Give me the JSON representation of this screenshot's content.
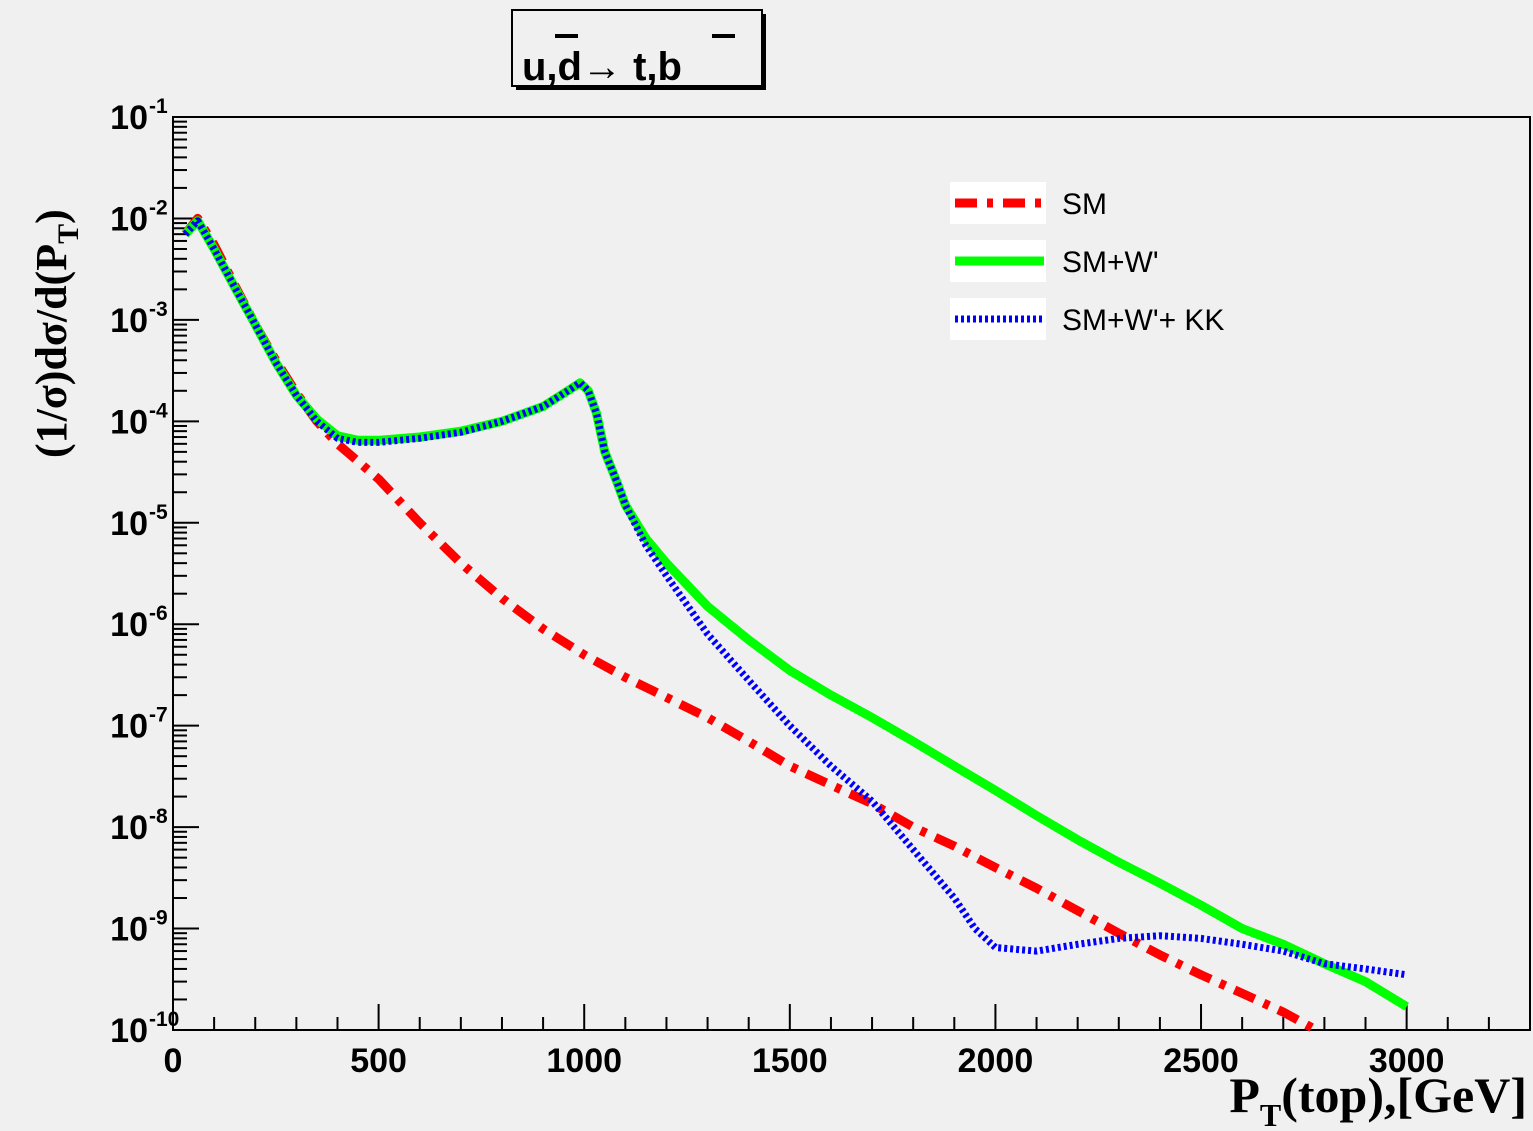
{
  "chart_data": {
    "type": "line",
    "title_parts": [
      "u,",
      "d",
      "→ t,",
      "b"
    ],
    "xlabel_parts": [
      "P",
      "T",
      "(top),[GeV]"
    ],
    "ylabel_parts": [
      "(1/σ)dσ/d(P",
      "T",
      ")"
    ],
    "x_range": [
      0,
      3300
    ],
    "y_range": [
      1e-10,
      0.1
    ],
    "y_scale": "log",
    "x_ticks": [
      0,
      500,
      1000,
      1500,
      2000,
      2500,
      3000
    ],
    "x_tick_labels": [
      "0",
      "500",
      "1000",
      "1500",
      "2000",
      "2500",
      "3000"
    ],
    "y_ticks": [
      {
        "value": 0.1,
        "base": "10",
        "exp": "-1"
      },
      {
        "value": 0.01,
        "base": "10",
        "exp": "-2"
      },
      {
        "value": 0.001,
        "base": "10",
        "exp": "-3"
      },
      {
        "value": 0.0001,
        "base": "10",
        "exp": "-4"
      },
      {
        "value": 1e-05,
        "base": "10",
        "exp": "-5"
      },
      {
        "value": 1e-06,
        "base": "10",
        "exp": "-6"
      },
      {
        "value": 1e-07,
        "base": "10",
        "exp": "-7"
      },
      {
        "value": 1e-08,
        "base": "10",
        "exp": "-8"
      },
      {
        "value": 1e-09,
        "base": "10",
        "exp": "-9"
      },
      {
        "value": 1e-10,
        "base": "10",
        "exp": "-10"
      }
    ],
    "legend_position": "top-right",
    "series": [
      {
        "name": "SM",
        "color": "#ff0000",
        "style": "dash-dot",
        "x": [
          30,
          60,
          100,
          150,
          200,
          250,
          300,
          350,
          400,
          500,
          600,
          700,
          800,
          900,
          1000,
          1100,
          1200,
          1300,
          1400,
          1500,
          1600,
          1700,
          1800,
          1900,
          2000,
          2100,
          2200,
          2300,
          2400,
          2500,
          2600,
          2700,
          2780
        ],
        "y": [
          0.007,
          0.01,
          0.0055,
          0.0022,
          0.0009,
          0.0004,
          0.00019,
          0.0001,
          6e-05,
          2.7e-05,
          1e-05,
          4e-06,
          1.8e-06,
          9e-07,
          5e-07,
          3e-07,
          1.9e-07,
          1.2e-07,
          7e-08,
          4e-08,
          2.6e-08,
          1.7e-08,
          1e-08,
          6.5e-09,
          4e-09,
          2.5e-09,
          1.5e-09,
          9e-10,
          5.5e-10,
          3.5e-10,
          2.3e-10,
          1.5e-10,
          1e-10
        ]
      },
      {
        "name": "SM+W'",
        "color": "#00ff00",
        "style": "solid",
        "x": [
          30,
          60,
          100,
          150,
          200,
          250,
          300,
          350,
          400,
          450,
          500,
          600,
          700,
          800,
          900,
          960,
          990,
          1010,
          1030,
          1050,
          1080,
          1100,
          1150,
          1200,
          1300,
          1400,
          1500,
          1600,
          1700,
          1800,
          1900,
          2000,
          2100,
          2200,
          2300,
          2400,
          2500,
          2600,
          2700,
          2800,
          2900,
          3000
        ],
        "y": [
          0.007,
          0.0095,
          0.005,
          0.0021,
          0.0009,
          0.00038,
          0.00018,
          0.000105,
          7.2e-05,
          6.5e-05,
          6.5e-05,
          7e-05,
          8e-05,
          0.0001,
          0.00014,
          0.0002,
          0.00024,
          0.0002,
          0.00012,
          5e-05,
          2.5e-05,
          1.5e-05,
          7e-06,
          4e-06,
          1.5e-06,
          7e-07,
          3.5e-07,
          2e-07,
          1.2e-07,
          7e-08,
          4e-08,
          2.3e-08,
          1.3e-08,
          7.5e-09,
          4.5e-09,
          2.8e-09,
          1.7e-09,
          1e-09,
          7e-10,
          4.5e-10,
          3e-10,
          1.7e-10
        ]
      },
      {
        "name": "SM+W'+ KK",
        "color": "#0000ff",
        "style": "dotted",
        "x": [
          30,
          60,
          100,
          150,
          200,
          250,
          300,
          350,
          400,
          450,
          500,
          600,
          700,
          800,
          900,
          960,
          990,
          1010,
          1030,
          1050,
          1080,
          1100,
          1150,
          1200,
          1300,
          1400,
          1500,
          1600,
          1700,
          1800,
          1900,
          1950,
          2000,
          2100,
          2200,
          2300,
          2400,
          2500,
          2600,
          2700,
          2800,
          2900,
          3000
        ],
        "y": [
          0.007,
          0.0095,
          0.005,
          0.0021,
          0.0009,
          0.00038,
          0.00018,
          0.0001,
          6.8e-05,
          6.2e-05,
          6.2e-05,
          6.8e-05,
          7.8e-05,
          0.0001,
          0.00014,
          0.0002,
          0.00024,
          0.0002,
          0.00012,
          5e-05,
          2.5e-05,
          1.5e-05,
          6e-06,
          3e-06,
          8e-07,
          2.8e-07,
          1e-07,
          4e-08,
          1.8e-08,
          6e-09,
          2e-09,
          1e-09,
          6.5e-10,
          6e-10,
          7e-10,
          8e-10,
          8.5e-10,
          8e-10,
          7e-10,
          6e-10,
          4.5e-10,
          4e-10,
          3.5e-10
        ]
      }
    ]
  }
}
